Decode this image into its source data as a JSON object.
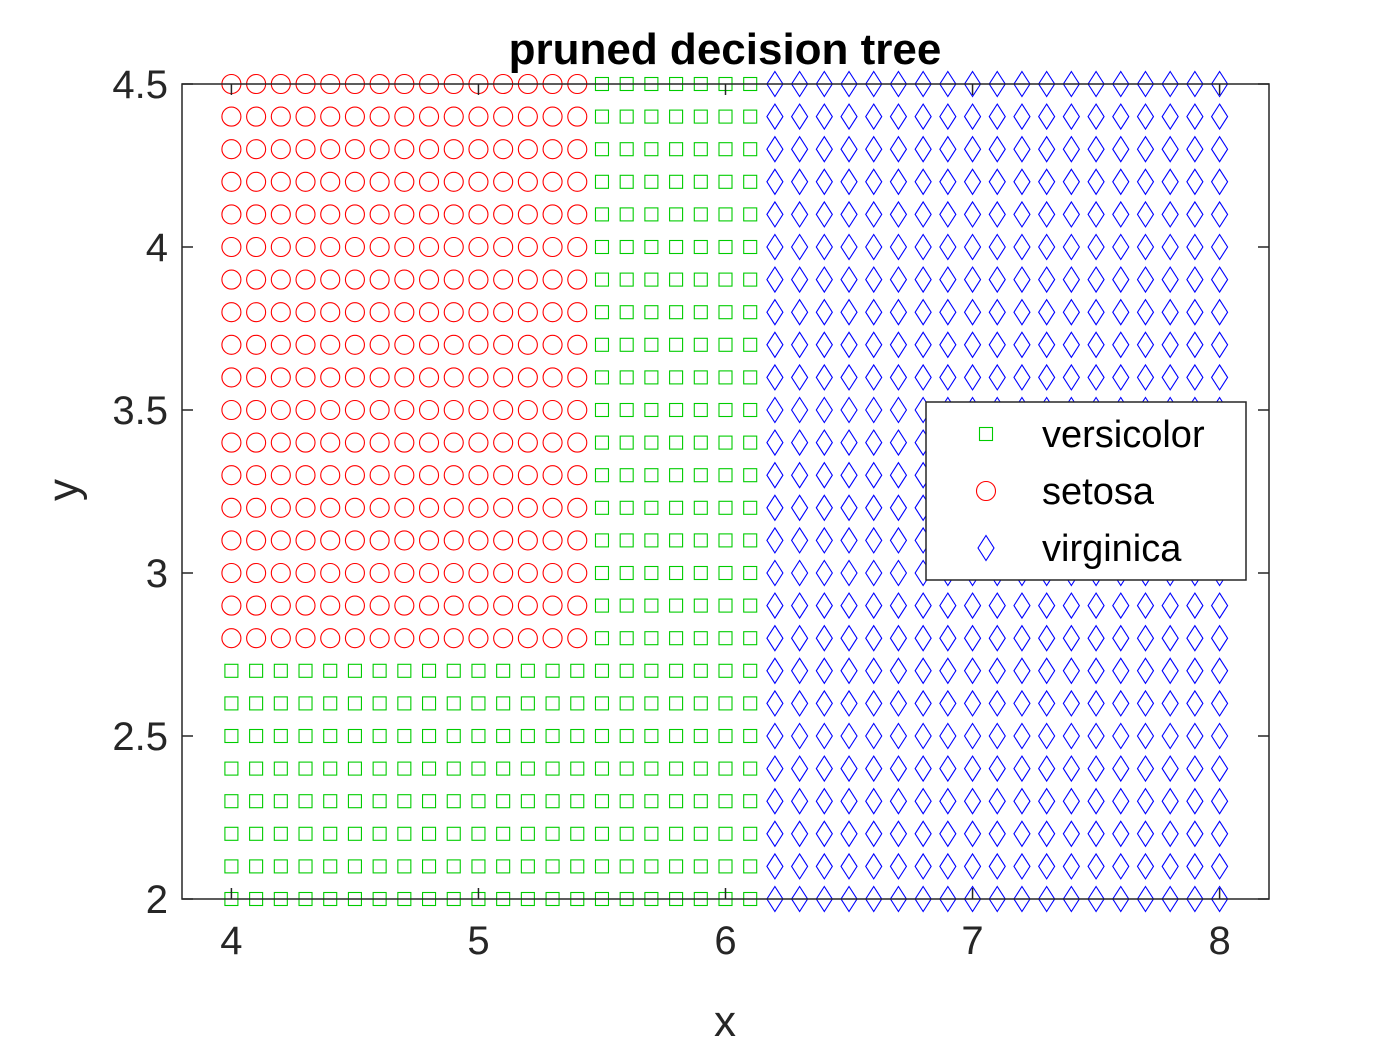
{
  "chart_data": {
    "type": "scatter",
    "title": "pruned decision tree",
    "xlabel": "x",
    "ylabel": "y",
    "xlim": [
      3.8,
      8.2
    ],
    "ylim": [
      2,
      4.5
    ],
    "xticks": [
      4,
      5,
      6,
      7,
      8
    ],
    "yticks": [
      2,
      2.5,
      3,
      3.5,
      4,
      4.5
    ],
    "xtick_labels": [
      "4",
      "5",
      "6",
      "7",
      "8"
    ],
    "ytick_labels": [
      "2",
      "2.5",
      "3",
      "3.5",
      "4",
      "4.5"
    ],
    "grid": false,
    "legend_position": "right",
    "grid_points": {
      "x_start": 4.0,
      "x_end": 8.0,
      "x_step": 0.1,
      "y_start": 2.0,
      "y_end": 4.5,
      "y_step": 0.1
    },
    "decision_rules": {
      "virginica_if_x_at_least": 6.2,
      "versicolor_if_y_below": 2.75,
      "setosa_if_x_below": 5.45
    },
    "series": [
      {
        "name": "versicolor",
        "marker": "square",
        "color": "#00cc00"
      },
      {
        "name": "setosa",
        "marker": "circle",
        "color": "#ff0000"
      },
      {
        "name": "virginica",
        "marker": "diamond",
        "color": "#0000ff"
      }
    ]
  }
}
